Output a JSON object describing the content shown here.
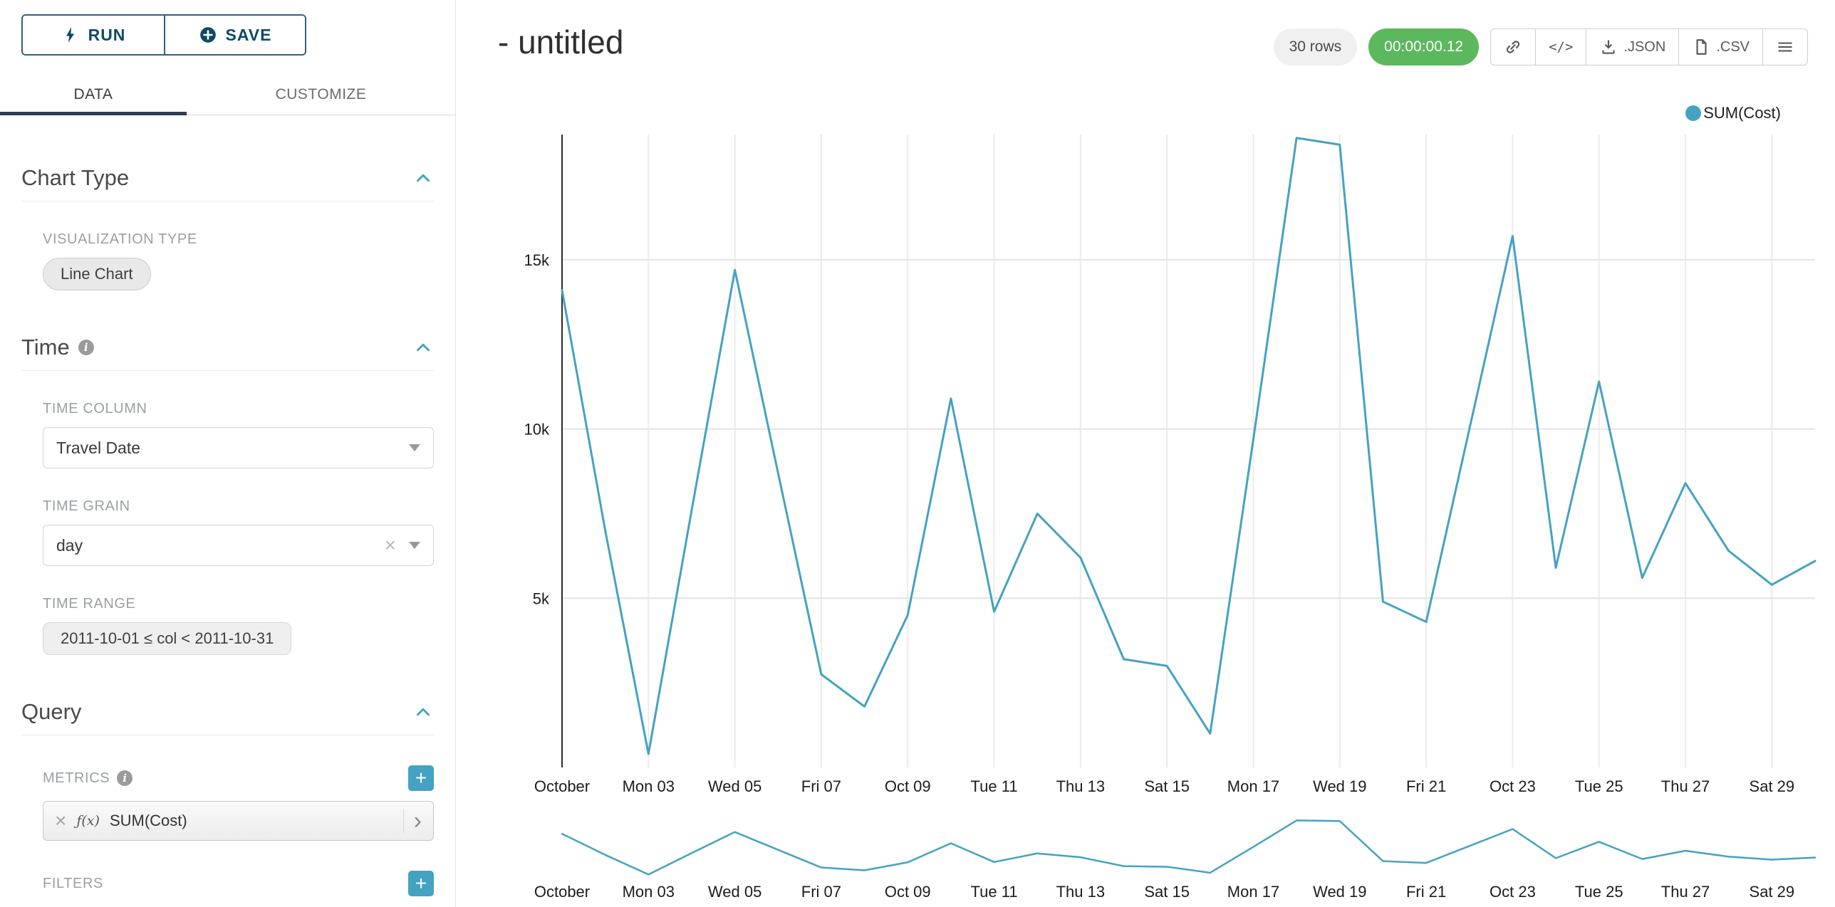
{
  "colors": {
    "accent": "#45a2c2",
    "navy": "#0e4a68",
    "navy_border": "#32617f",
    "timer_green": "#5cb85c",
    "tab_underline": "#2d3e50"
  },
  "toolbar": {
    "run_label": "RUN",
    "save_label": "SAVE"
  },
  "tabs": {
    "data": "DATA",
    "customize": "CUSTOMIZE"
  },
  "icons": {
    "clear_x": "×",
    "chevron_right": "›",
    "plus": "+",
    "code": "</>"
  },
  "sections": {
    "chart_type": {
      "title": "Chart Type",
      "viz_label": "VISUALIZATION TYPE",
      "viz_value": "Line Chart"
    },
    "time": {
      "title": "Time",
      "column_label": "TIME COLUMN",
      "column_value": "Travel Date",
      "grain_label": "TIME GRAIN",
      "grain_value": "day",
      "range_label": "TIME RANGE",
      "range_value": "2011-10-01 ≤ col < 2011-10-31"
    },
    "query": {
      "title": "Query",
      "metrics_label": "METRICS",
      "metric": {
        "fx": "ƒ(x)",
        "name": "SUM(Cost)"
      },
      "filters_label": "FILTERS"
    }
  },
  "header": {
    "title": "- untitled",
    "row_count": "30 rows",
    "timer": "00:00:00.12",
    "export_json": ".JSON",
    "export_csv": ".CSV"
  },
  "chart_data": {
    "type": "line",
    "title": "- untitled",
    "legend": [
      {
        "name": "SUM(Cost)",
        "color": "#45a2c2"
      }
    ],
    "legend_position": "top-right",
    "grid": true,
    "x": [
      "2011-10-01",
      "2011-10-02",
      "2011-10-03",
      "2011-10-04",
      "2011-10-05",
      "2011-10-06",
      "2011-10-07",
      "2011-10-08",
      "2011-10-09",
      "2011-10-10",
      "2011-10-11",
      "2011-10-12",
      "2011-10-13",
      "2011-10-14",
      "2011-10-15",
      "2011-10-16",
      "2011-10-17",
      "2011-10-18",
      "2011-10-19",
      "2011-10-20",
      "2011-10-21",
      "2011-10-22",
      "2011-10-23",
      "2011-10-24",
      "2011-10-25",
      "2011-10-26",
      "2011-10-27",
      "2011-10-28",
      "2011-10-29",
      "2011-10-30"
    ],
    "series": [
      {
        "name": "SUM(Cost)",
        "color": "#45a2c2",
        "values": [
          14100,
          7000,
          400,
          7600,
          14700,
          8700,
          2750,
          1800,
          4500,
          10900,
          4600,
          7500,
          6200,
          3200,
          3000,
          1000,
          9700,
          18600,
          18400,
          4900,
          4300,
          10000,
          15700,
          5900,
          11400,
          5600,
          8400,
          6400,
          5400,
          6100
        ]
      }
    ],
    "x_tick_indices": [
      0,
      2,
      4,
      6,
      8,
      10,
      12,
      14,
      16,
      18,
      20,
      22,
      24,
      26,
      28
    ],
    "x_tick_labels": [
      "October",
      "Mon 03",
      "Wed 05",
      "Fri 07",
      "Oct 09",
      "Tue 11",
      "Thu 13",
      "Sat 15",
      "Mon 17",
      "Wed 19",
      "Fri 21",
      "Oct 23",
      "Tue 25",
      "Thu 27",
      "Sat 29"
    ],
    "y_ticks": [
      {
        "value": 5000,
        "label": "5k"
      },
      {
        "value": 10000,
        "label": "10k"
      },
      {
        "value": 15000,
        "label": "15k"
      }
    ],
    "ylim": [
      0,
      18700
    ],
    "xlabel": "",
    "ylabel": ""
  }
}
